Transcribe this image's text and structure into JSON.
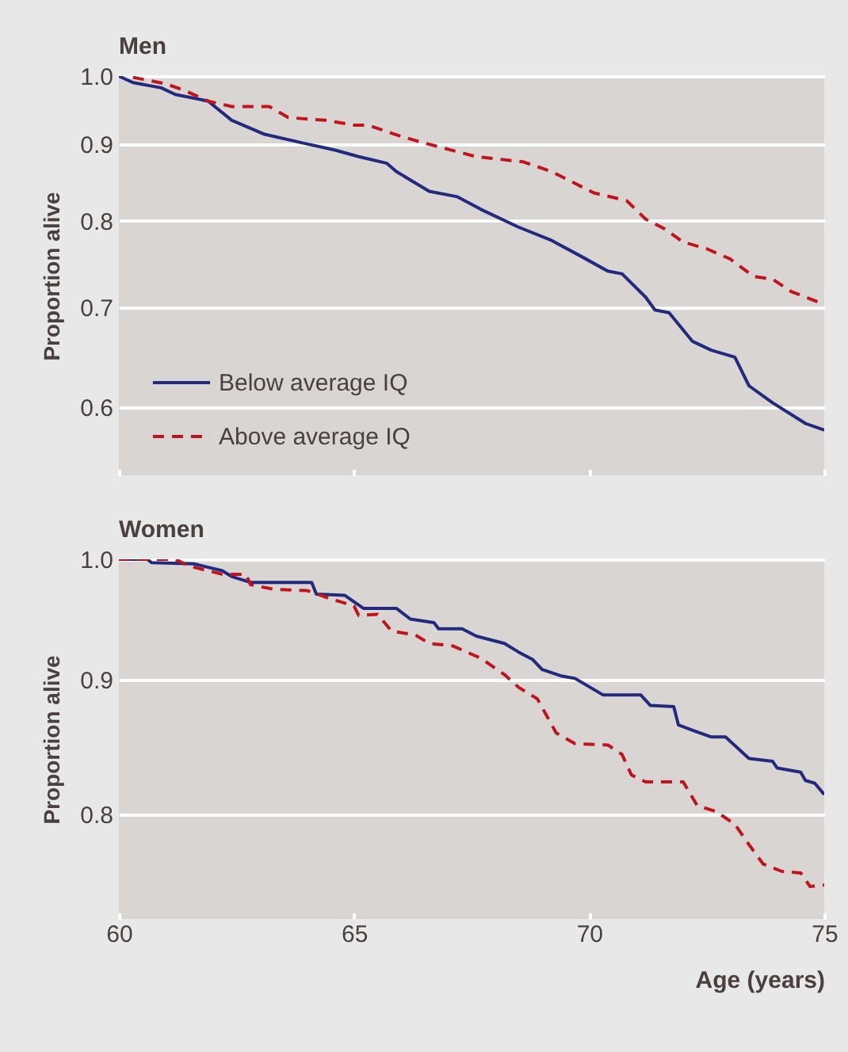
{
  "chart_data": [
    {
      "type": "line",
      "title": "Men",
      "ylabel": "Proportion alive",
      "series": [
        {
          "name": "Below average IQ",
          "color": "#232a7e",
          "line_style": "solid",
          "x": [
            60,
            60.3,
            60.9,
            61.2,
            61.9,
            62.4,
            63.1,
            63.9,
            64.6,
            65.1,
            65.7,
            65.9,
            66.6,
            67.2,
            67.7,
            68.5,
            69.2,
            69.8,
            70.4,
            70.7,
            71.2,
            71.4,
            71.7,
            72.2,
            72.6,
            73.1,
            73.4,
            73.9,
            74.6,
            75
          ],
          "values": [
            1.0,
            0.99,
            0.982,
            0.972,
            0.962,
            0.934,
            0.914,
            0.902,
            0.892,
            0.883,
            0.874,
            0.863,
            0.837,
            0.83,
            0.814,
            0.792,
            0.776,
            0.758,
            0.74,
            0.737,
            0.711,
            0.697,
            0.694,
            0.664,
            0.655,
            0.648,
            0.62,
            0.604,
            0.585,
            0.579
          ]
        },
        {
          "name": "Above average IQ",
          "color": "#c0141e",
          "line_style": "dashed",
          "x": [
            60.3,
            61.0,
            61.4,
            61.9,
            62.4,
            63.2,
            63.6,
            64.4,
            65.0,
            65.3,
            66.0,
            66.6,
            67.6,
            68.6,
            69.2,
            70.1,
            70.8,
            71.2,
            71.6,
            72.0,
            72.5,
            73.0,
            73.5,
            73.9,
            74.3,
            75
          ],
          "values": [
            0.998,
            0.988,
            0.978,
            0.962,
            0.954,
            0.954,
            0.938,
            0.934,
            0.927,
            0.927,
            0.911,
            0.9,
            0.883,
            0.876,
            0.863,
            0.835,
            0.825,
            0.802,
            0.79,
            0.774,
            0.766,
            0.754,
            0.734,
            0.731,
            0.717,
            0.703
          ]
        }
      ],
      "xlim": [
        60,
        75
      ],
      "xticks": [
        60,
        65,
        70,
        75
      ],
      "ylim": [
        0.54,
        1.0
      ],
      "yticks": [
        {
          "value": 1.0,
          "label": "1.0"
        },
        0.9,
        0.8,
        0.7,
        0.6
      ],
      "log": true,
      "grid": "y",
      "legend": "bottom left",
      "tick_labels": "y"
    },
    {
      "type": "line",
      "title": "Women",
      "xlabel": "Age (years)",
      "ylabel": "Proportion alive",
      "series": [
        {
          "color": "#232a7e",
          "line_style": "solid",
          "x": [
            60,
            60.6,
            60.7,
            61.6,
            62.2,
            62.4,
            62.8,
            64.1,
            64.2,
            64.8,
            65.2,
            65.9,
            66.2,
            66.7,
            66.8,
            67.3,
            67.6,
            68.2,
            68.5,
            68.8,
            69.0,
            69.4,
            69.7,
            70.3,
            71.1,
            71.3,
            71.8,
            71.9,
            72.2,
            72.6,
            72.9,
            73.4,
            73.9,
            74.0,
            74.5,
            74.6,
            74.8,
            75.0
          ],
          "values": [
            1.0,
            1.0,
            0.997,
            0.996,
            0.99,
            0.985,
            0.98,
            0.98,
            0.97,
            0.969,
            0.958,
            0.958,
            0.949,
            0.946,
            0.941,
            0.941,
            0.935,
            0.929,
            0.922,
            0.916,
            0.908,
            0.903,
            0.901,
            0.888,
            0.888,
            0.88,
            0.879,
            0.865,
            0.861,
            0.856,
            0.856,
            0.84,
            0.838,
            0.833,
            0.83,
            0.824,
            0.822,
            0.814
          ]
        },
        {
          "color": "#c0141e",
          "line_style": "dashed",
          "x": [
            60,
            61.2,
            61.5,
            62.2,
            62.7,
            62.8,
            63.3,
            64.0,
            64.5,
            65.0,
            65.1,
            65.5,
            65.8,
            66.3,
            66.6,
            67.1,
            67.7,
            68.2,
            68.5,
            68.9,
            69.3,
            69.7,
            70.4,
            70.7,
            70.9,
            71.2,
            72.0,
            72.3,
            72.7,
            73.1,
            73.4,
            73.7,
            74.1,
            74.5,
            74.7,
            75.0
          ],
          "values": [
            1.0,
            1.0,
            0.994,
            0.987,
            0.987,
            0.978,
            0.974,
            0.973,
            0.966,
            0.96,
            0.952,
            0.953,
            0.939,
            0.936,
            0.929,
            0.927,
            0.917,
            0.904,
            0.894,
            0.885,
            0.859,
            0.851,
            0.85,
            0.843,
            0.828,
            0.823,
            0.823,
            0.806,
            0.802,
            0.793,
            0.779,
            0.766,
            0.761,
            0.76,
            0.751,
            0.752
          ]
        }
      ],
      "xlim": [
        60,
        75
      ],
      "xticks": [
        60,
        65,
        70,
        75
      ],
      "ylim": [
        0.73,
        1.0
      ],
      "yticks": [
        {
          "value": 1.0,
          "label": "1.0"
        },
        0.9,
        0.8
      ],
      "log": true,
      "grid": "y"
    }
  ]
}
